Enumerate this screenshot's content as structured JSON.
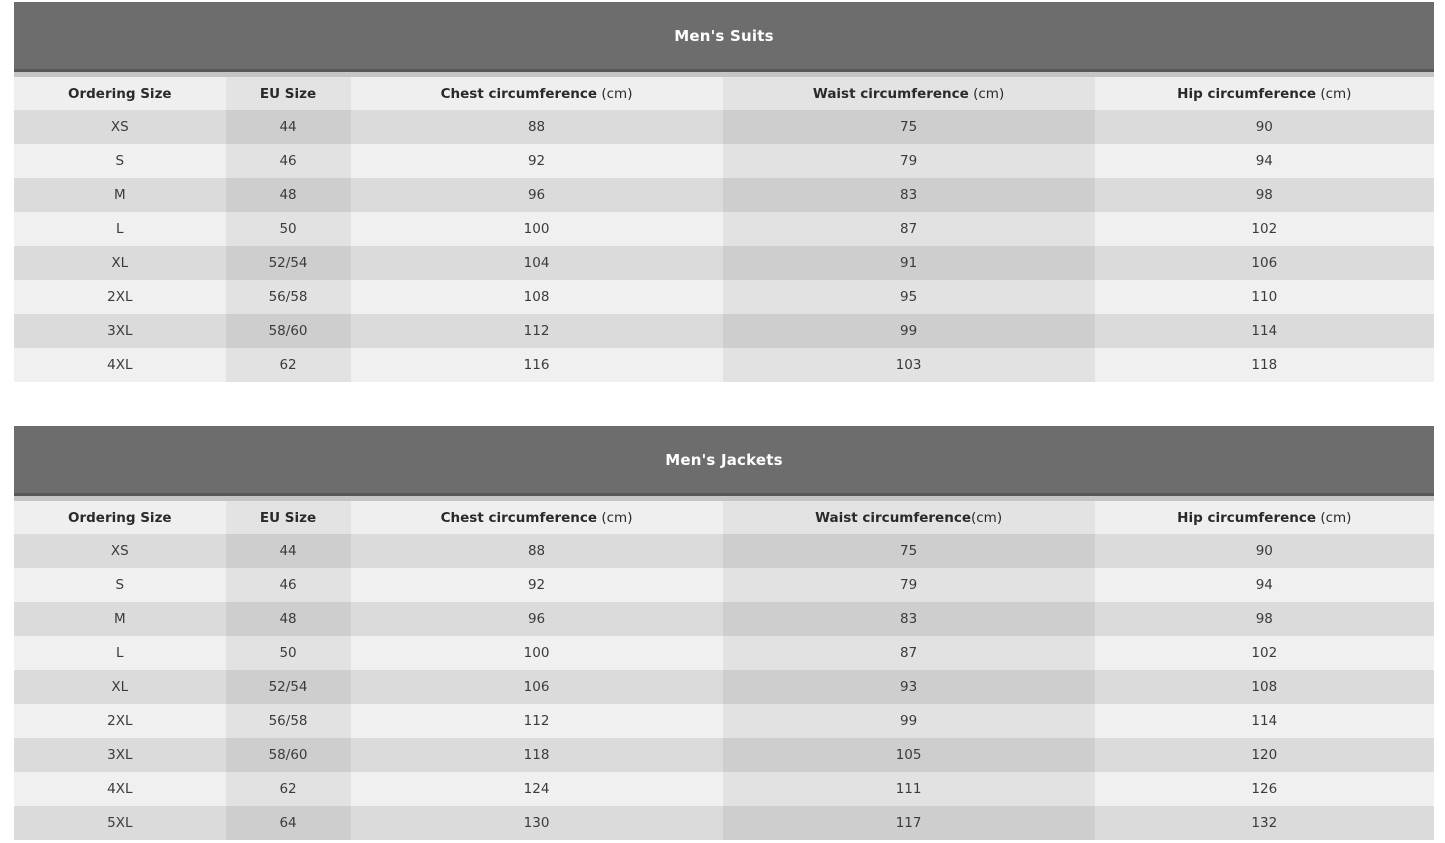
{
  "page": {
    "background_color": "#ffffff",
    "banner_color": "#6d6d6d",
    "banner_text_color": "#ffffff",
    "row_colors": {
      "header": "#efefef",
      "header_alt_column": "#e3e3e3",
      "odd_row": "#dbdbdb",
      "odd_row_alt_column": "#cecece",
      "even_row": "#f0f0f0",
      "even_row_alt_column": "#e2e2e2"
    }
  },
  "tables": [
    {
      "title": "Men's Suits",
      "columns": [
        {
          "bold": "Ordering Size",
          "suffix": ""
        },
        {
          "bold": "EU Size",
          "suffix": ""
        },
        {
          "bold": "Chest circumference",
          "suffix": " (cm)"
        },
        {
          "bold": "Waist circumference",
          "suffix": " (cm)"
        },
        {
          "bold": "Hip circumference",
          "suffix": " (cm)"
        }
      ],
      "rows": [
        [
          "XS",
          "44",
          "88",
          "75",
          "90"
        ],
        [
          "S",
          "46",
          "92",
          "79",
          "94"
        ],
        [
          "M",
          "48",
          "96",
          "83",
          "98"
        ],
        [
          "L",
          "50",
          "100",
          "87",
          "102"
        ],
        [
          "XL",
          "52/54",
          "104",
          "91",
          "106"
        ],
        [
          "2XL",
          "56/58",
          "108",
          "95",
          "110"
        ],
        [
          "3XL",
          "58/60",
          "112",
          "99",
          "114"
        ],
        [
          "4XL",
          "62",
          "116",
          "103",
          "118"
        ]
      ]
    },
    {
      "title": "Men's Jackets",
      "columns": [
        {
          "bold": "Ordering Size",
          "suffix": ""
        },
        {
          "bold": "EU Size",
          "suffix": ""
        },
        {
          "bold": "Chest circumference",
          "suffix": " (cm)"
        },
        {
          "bold": "Waist circumference",
          "suffix": "(cm)"
        },
        {
          "bold": "Hip circumference",
          "suffix": " (cm)"
        }
      ],
      "rows": [
        [
          "XS",
          "44",
          "88",
          "75",
          "90"
        ],
        [
          "S",
          "46",
          "92",
          "79",
          "94"
        ],
        [
          "M",
          "48",
          "96",
          "83",
          "98"
        ],
        [
          "L",
          "50",
          "100",
          "87",
          "102"
        ],
        [
          "XL",
          "52/54",
          "106",
          "93",
          "108"
        ],
        [
          "2XL",
          "56/58",
          "112",
          "99",
          "114"
        ],
        [
          "3XL",
          "58/60",
          "118",
          "105",
          "120"
        ],
        [
          "4XL",
          "62",
          "124",
          "111",
          "126"
        ],
        [
          "5XL",
          "64",
          "130",
          "117",
          "132"
        ]
      ]
    }
  ]
}
